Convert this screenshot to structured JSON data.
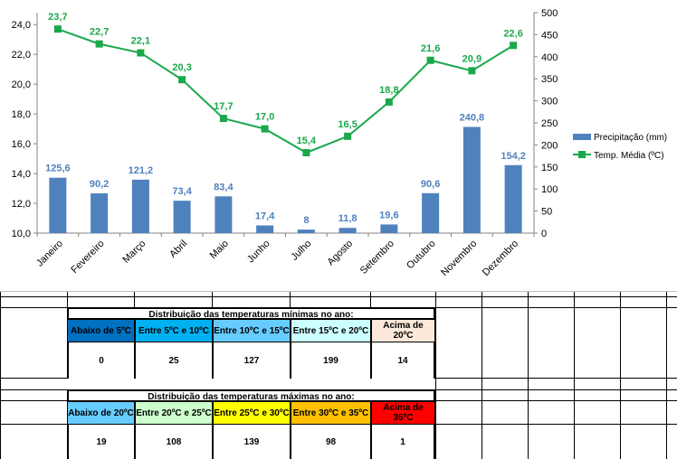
{
  "chart_data": {
    "type": "bar",
    "categories": [
      "Janeiro",
      "Fevereiro",
      "Março",
      "Abril",
      "Maio",
      "Junho",
      "Julho",
      "Agosto",
      "Setembro",
      "Outubro",
      "Novembro",
      "Dezembro"
    ],
    "series": [
      {
        "name": "Precipitação (mm)",
        "type": "bar",
        "axis": "right",
        "color": "#4f81bd",
        "values": [
          125.6,
          90.2,
          121.2,
          73.4,
          83.4,
          17.4,
          8,
          11.8,
          19.6,
          90.6,
          240.8,
          154.2
        ],
        "labels": [
          "125,6",
          "90,2",
          "121,2",
          "73,4",
          "83,4",
          "17,4",
          "8",
          "11,8",
          "19,6",
          "90,6",
          "240,8",
          "154,2"
        ]
      },
      {
        "name": "Temp. Média (ºC)",
        "type": "line",
        "axis": "left",
        "color": "#1aa84a",
        "values": [
          23.7,
          22.7,
          22.1,
          20.3,
          17.7,
          17.0,
          15.4,
          16.5,
          18.8,
          21.6,
          20.9,
          22.6
        ],
        "labels": [
          "23,7",
          "22,7",
          "22,1",
          "20,3",
          "17,7",
          "17,0",
          "15,4",
          "16,5",
          "18,8",
          "21,6",
          "20,9",
          "22,6"
        ]
      }
    ],
    "left_axis": {
      "min": 10,
      "max": 24.8,
      "ticks": [
        "10,0",
        "12,0",
        "14,0",
        "16,0",
        "18,0",
        "20,0",
        "22,0",
        "24,0"
      ],
      "tick_values": [
        10,
        12,
        14,
        16,
        18,
        20,
        22,
        24
      ]
    },
    "right_axis": {
      "min": 0,
      "max": 500,
      "ticks": [
        "0",
        "50",
        "100",
        "150",
        "200",
        "250",
        "300",
        "350",
        "400",
        "450",
        "500"
      ],
      "tick_values": [
        0,
        50,
        100,
        150,
        200,
        250,
        300,
        350,
        400,
        450,
        500
      ]
    },
    "legend_position": "right",
    "grid": false
  },
  "min_table": {
    "title": "Distribuição das temperaturas mínimas no ano:",
    "categories": [
      {
        "label": "Abaixo de 5ºC",
        "color": "#0070c0",
        "value": "0"
      },
      {
        "label": "Entre 5ºC e 10ºC",
        "color": "#00b0f0",
        "value": "25"
      },
      {
        "label": "Entre 10ºC e 15ºC",
        "color": "#66ccff",
        "value": "127"
      },
      {
        "label": "Entre 15ºC e 20ºC",
        "color": "#ccffff",
        "value": "199"
      },
      {
        "label": "Acima de 20ºC",
        "color": "#fde9d9",
        "value": "14"
      }
    ]
  },
  "max_table": {
    "title": "Distribuição das temperaturas máximas no ano:",
    "categories": [
      {
        "label": "Abaixo de 20ºC",
        "color": "#66ccff",
        "value": "19"
      },
      {
        "label": "Entre 20ºC e 25ºC",
        "color": "#ccffcc",
        "value": "108"
      },
      {
        "label": "Entre 25ºC e 30ºC",
        "color": "#ffff00",
        "value": "139"
      },
      {
        "label": "Entre 30ºC e 35ºC",
        "color": "#ffc000",
        "value": "98"
      },
      {
        "label": "Acima de 35ºC",
        "color": "#ff0000",
        "value": "1"
      }
    ]
  }
}
